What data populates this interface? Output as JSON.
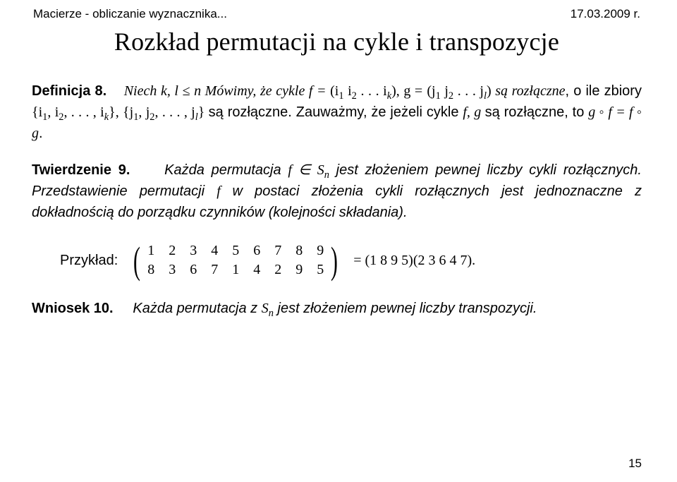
{
  "header": {
    "left": "Macierze - obliczanie wyznacznika...",
    "right": "17.03.2009 r."
  },
  "title": "Rozkład permutacji na cykle i transpozycje",
  "def": {
    "label": "Definicja 8.",
    "lead1": "Niech ",
    "math_kl": "k, l ≤ n ",
    "lead2": "Mówimy, że ",
    "word_cykle": "cykle ",
    "math_f": "f =",
    "i_seq_open": " (i",
    "i1s": "1",
    "sp": " i",
    "i2s": "2",
    "dots": " . . . i",
    "iks": "k",
    "close": "), g =",
    "line2a": "(j",
    "j1s": "1",
    "spj": " j",
    "j2s": "2",
    "dotsj": " . . . j",
    "jls": "l",
    "close2": ") ",
    "word_sa": "są ",
    "word_rozl": "rozłączne",
    "line2b": ", o ile zbiory ",
    "set1o": "{i",
    "c1": "1",
    "cm": ", i",
    "c2": "2",
    "cdots": ", . . . , i",
    "ck": "k",
    "set1c": "}, {j",
    "d1": "1",
    "dm": ", j",
    "d2": "2",
    "ddots": ", . . . , j",
    "dl": "l",
    "set2c": "} ",
    "word_sa2": "są",
    "line3a": "rozłączne. Zauważmy, że jeżeli cykle ",
    "math_fg": "f, g ",
    "line3b": "są rozłączne, to ",
    "math_comp": "g ◦ f = f ◦ g",
    "dot": "."
  },
  "thm": {
    "label": "Twierdzenie 9.",
    "body1": "Każda permutacja ",
    "math_fS": "f ∈ S",
    "sub_n": "n",
    "body1b": " jest złożeniem pewnej liczby cykli rozłącznych. Przedstawienie permutacji ",
    "math_f": "f ",
    "body2": " w postaci złożenia cykli rozłącznych jest jednoznaczne z dokładnością do porządku czynników (kolejności składania)."
  },
  "example": {
    "label": "Przykład:",
    "row1": [
      "1",
      "2",
      "3",
      "4",
      "5",
      "6",
      "7",
      "8",
      "9"
    ],
    "row2": [
      "8",
      "3",
      "6",
      "7",
      "1",
      "4",
      "2",
      "9",
      "5"
    ],
    "rhs": "= (1 8 9 5)(2 3 6 4 7)."
  },
  "cor": {
    "label": "Wniosek 10.",
    "body1": "Każda permutacja z ",
    "math_Sn": "S",
    "sub_n": "n",
    "body2": " jest złożeniem pewnej liczby transpozycji."
  },
  "pagenum": "15"
}
